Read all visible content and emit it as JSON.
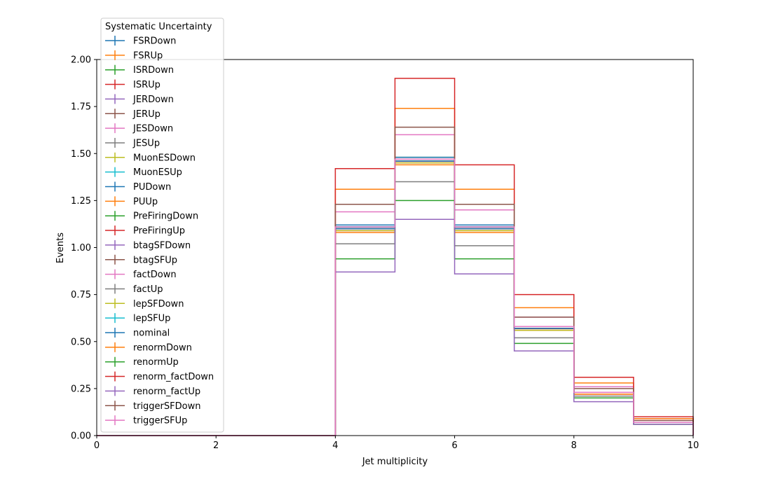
{
  "chart_data": {
    "type": "line",
    "drawstyle": "steps",
    "title": "",
    "xlabel": "Jet multiplicity",
    "ylabel": "Events",
    "xlim": [
      0,
      10
    ],
    "ylim": [
      0,
      2.0
    ],
    "xticks": [
      "0",
      "2",
      "4",
      "6",
      "8",
      "10"
    ],
    "yticks": [
      "0.00",
      "0.25",
      "0.50",
      "0.75",
      "1.00",
      "1.25",
      "1.50",
      "1.75",
      "2.00"
    ],
    "bin_edges": [
      0,
      1,
      2,
      3,
      4,
      5,
      6,
      7,
      8,
      9,
      10
    ],
    "legend_title": "Systematic Uncertainty",
    "legend_position": "upper left, outside plot",
    "grid": false,
    "series": [
      {
        "name": "FSRDown",
        "color": "#1f77b4",
        "values": [
          0,
          0,
          0,
          0,
          1.11,
          1.47,
          1.11,
          0.57,
          0.23,
          0.07
        ]
      },
      {
        "name": "FSRUp",
        "color": "#ff7f0e",
        "values": [
          0,
          0,
          0,
          0,
          1.09,
          1.45,
          1.09,
          0.56,
          0.22,
          0.07
        ]
      },
      {
        "name": "ISRDown",
        "color": "#2ca02c",
        "values": [
          0,
          0,
          0,
          0,
          1.12,
          1.48,
          1.12,
          0.58,
          0.23,
          0.07
        ]
      },
      {
        "name": "ISRUp",
        "color": "#d62728",
        "values": [
          0,
          0,
          0,
          0,
          1.1,
          1.46,
          1.1,
          0.57,
          0.23,
          0.07
        ]
      },
      {
        "name": "JERDown",
        "color": "#9467bd",
        "values": [
          0,
          0,
          0,
          0,
          1.1,
          1.46,
          1.1,
          0.57,
          0.23,
          0.07
        ]
      },
      {
        "name": "JERUp",
        "color": "#8c564b",
        "values": [
          0,
          0,
          0,
          0,
          1.1,
          1.46,
          1.11,
          0.57,
          0.23,
          0.07
        ]
      },
      {
        "name": "JESDown",
        "color": "#e377c2",
        "values": [
          0,
          0,
          0,
          0,
          1.09,
          1.45,
          1.1,
          0.56,
          0.22,
          0.07
        ]
      },
      {
        "name": "JESUp",
        "color": "#7f7f7f",
        "values": [
          0,
          0,
          0,
          0,
          1.11,
          1.47,
          1.11,
          0.58,
          0.23,
          0.07
        ]
      },
      {
        "name": "MuonESDown",
        "color": "#bcbd22",
        "values": [
          0,
          0,
          0,
          0,
          1.1,
          1.46,
          1.1,
          0.57,
          0.23,
          0.07
        ]
      },
      {
        "name": "MuonESUp",
        "color": "#17becf",
        "values": [
          0,
          0,
          0,
          0,
          1.11,
          1.47,
          1.11,
          0.58,
          0.23,
          0.07
        ]
      },
      {
        "name": "PUDown",
        "color": "#1f77b4",
        "values": [
          0,
          0,
          0,
          0,
          1.12,
          1.48,
          1.12,
          0.58,
          0.23,
          0.07
        ]
      },
      {
        "name": "PUUp",
        "color": "#ff7f0e",
        "values": [
          0,
          0,
          0,
          0,
          1.08,
          1.44,
          1.08,
          0.56,
          0.22,
          0.07
        ]
      },
      {
        "name": "PreFiringDown",
        "color": "#2ca02c",
        "values": [
          0,
          0,
          0,
          0,
          1.1,
          1.46,
          1.1,
          0.57,
          0.23,
          0.07
        ]
      },
      {
        "name": "PreFiringUp",
        "color": "#d62728",
        "values": [
          0,
          0,
          0,
          0,
          1.1,
          1.46,
          1.1,
          0.57,
          0.23,
          0.07
        ]
      },
      {
        "name": "btagSFDown",
        "color": "#9467bd",
        "values": [
          0,
          0,
          0,
          0,
          1.1,
          1.46,
          1.1,
          0.57,
          0.23,
          0.07
        ]
      },
      {
        "name": "btagSFUp",
        "color": "#8c564b",
        "values": [
          0,
          0,
          0,
          0,
          1.1,
          1.46,
          1.1,
          0.57,
          0.23,
          0.07
        ]
      },
      {
        "name": "factDown",
        "color": "#e377c2",
        "values": [
          0,
          0,
          0,
          0,
          1.19,
          1.6,
          1.2,
          0.63,
          0.26,
          0.09
        ]
      },
      {
        "name": "factUp",
        "color": "#7f7f7f",
        "values": [
          0,
          0,
          0,
          0,
          1.02,
          1.35,
          1.01,
          0.52,
          0.21,
          0.06
        ]
      },
      {
        "name": "lepSFDown",
        "color": "#bcbd22",
        "values": [
          0,
          0,
          0,
          0,
          1.09,
          1.45,
          1.09,
          0.56,
          0.23,
          0.07
        ]
      },
      {
        "name": "lepSFUp",
        "color": "#17becf",
        "values": [
          0,
          0,
          0,
          0,
          1.11,
          1.47,
          1.11,
          0.58,
          0.23,
          0.07
        ]
      },
      {
        "name": "nominal",
        "color": "#1f77b4",
        "values": [
          0,
          0,
          0,
          0,
          1.1,
          1.46,
          1.1,
          0.57,
          0.23,
          0.07
        ]
      },
      {
        "name": "renormDown",
        "color": "#ff7f0e",
        "values": [
          0,
          0,
          0,
          0,
          1.31,
          1.74,
          1.31,
          0.68,
          0.28,
          0.09
        ]
      },
      {
        "name": "renormUp",
        "color": "#2ca02c",
        "values": [
          0,
          0,
          0,
          0,
          0.94,
          1.25,
          0.94,
          0.49,
          0.2,
          0.06
        ]
      },
      {
        "name": "renorm_factDown",
        "color": "#d62728",
        "values": [
          0,
          0,
          0,
          0,
          1.42,
          1.9,
          1.44,
          0.75,
          0.31,
          0.1
        ]
      },
      {
        "name": "renorm_factUp",
        "color": "#9467bd",
        "values": [
          0,
          0,
          0,
          0,
          0.87,
          1.15,
          0.86,
          0.45,
          0.18,
          0.06
        ]
      },
      {
        "name": "triggerSFDown",
        "color": "#8c564b",
        "values": [
          0,
          0,
          0,
          0,
          1.23,
          1.64,
          1.23,
          0.63,
          0.25,
          0.08
        ]
      },
      {
        "name": "triggerSFUp",
        "color": "#e377c2",
        "values": [
          0,
          0,
          0,
          0,
          1.11,
          1.47,
          1.11,
          0.58,
          0.23,
          0.07
        ]
      }
    ]
  }
}
